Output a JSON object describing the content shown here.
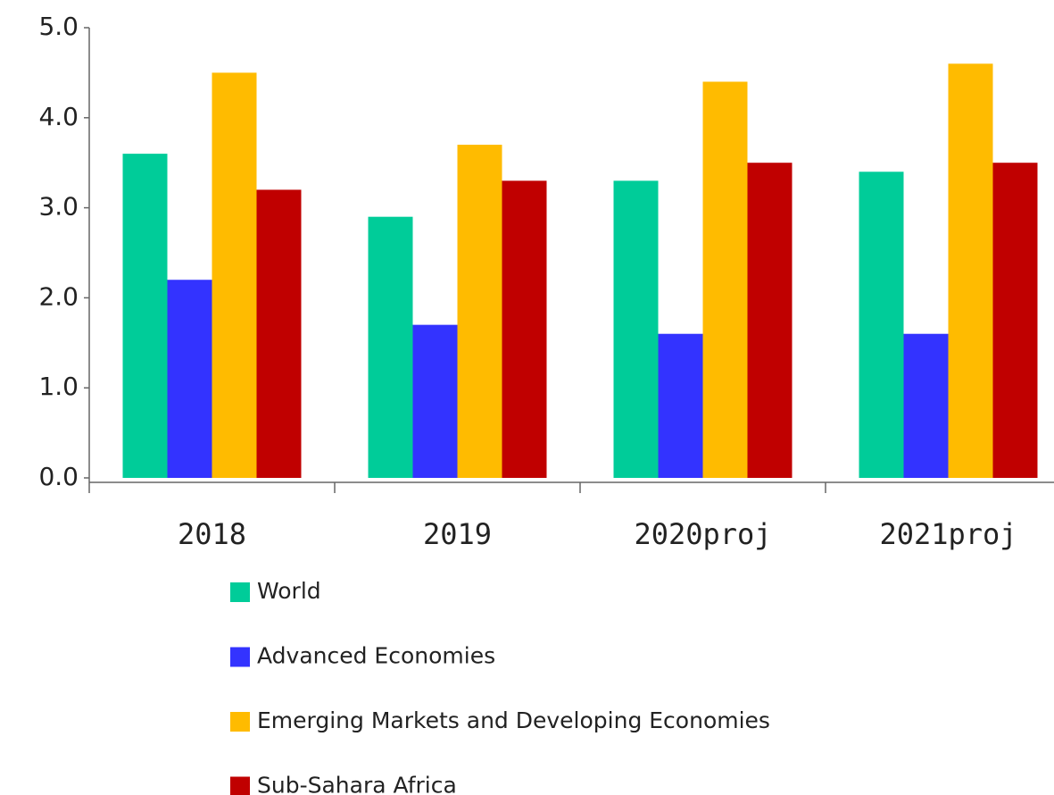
{
  "chart_data": {
    "type": "bar",
    "categories": [
      "2018",
      "2019",
      "2020proj",
      "2021proj"
    ],
    "series": [
      {
        "name": "World",
        "color": "#00cc99",
        "values": [
          3.6,
          2.9,
          3.3,
          3.4
        ]
      },
      {
        "name": "Advanced Economies",
        "color": "#3333ff",
        "values": [
          2.2,
          1.7,
          1.6,
          1.6
        ]
      },
      {
        "name": "Emerging Markets and Developing Economies",
        "color": "#ffbb00",
        "values": [
          4.5,
          3.7,
          4.4,
          4.6
        ]
      },
      {
        "name": "Sub-Sahara Africa",
        "color": "#c00000",
        "values": [
          3.2,
          3.3,
          3.5,
          3.5
        ]
      }
    ],
    "ylim": [
      0,
      5
    ],
    "yticks": [
      {
        "value": 0,
        "label": "0.0"
      },
      {
        "value": 1,
        "label": "1.0"
      },
      {
        "value": 2,
        "label": "2.0"
      },
      {
        "value": 3,
        "label": "3.0"
      },
      {
        "value": 4,
        "label": "4.0"
      },
      {
        "value": 5,
        "label": "5.0"
      }
    ],
    "grid": false,
    "legend": "bottom"
  }
}
